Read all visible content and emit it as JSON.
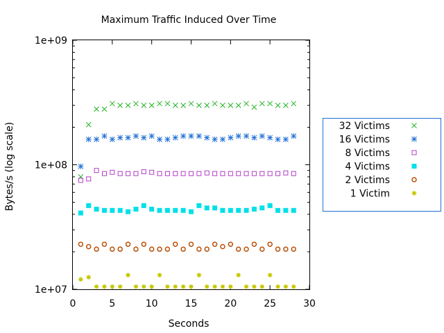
{
  "chart_data": {
    "type": "scatter",
    "title": "Maximum Traffic Induced Over Time",
    "xlabel": "Seconds",
    "ylabel": "Bytes/s (log scale)",
    "xlim": [
      0,
      30
    ],
    "ylim": [
      10000000,
      1000000000
    ],
    "yscale": "log",
    "grid": false,
    "legend_position": "right",
    "x_ticks": [
      {
        "value": 0,
        "label": "0"
      },
      {
        "value": 5,
        "label": "5"
      },
      {
        "value": 10,
        "label": "10"
      },
      {
        "value": 15,
        "label": "15"
      },
      {
        "value": 20,
        "label": "20"
      },
      {
        "value": 25,
        "label": "25"
      },
      {
        "value": 30,
        "label": "30"
      }
    ],
    "y_ticks": [
      {
        "value": 10000000,
        "label": "1e+07"
      },
      {
        "value": 100000000,
        "label": "1e+08"
      },
      {
        "value": 1000000000,
        "label": "1e+09"
      }
    ],
    "x": [
      1,
      2,
      3,
      4,
      5,
      6,
      7,
      8,
      9,
      10,
      11,
      12,
      13,
      14,
      15,
      16,
      17,
      18,
      19,
      20,
      21,
      22,
      23,
      24,
      25,
      26,
      27,
      28
    ],
    "series": [
      {
        "name": "32 Victims",
        "color": "#21b221",
        "marker": "x",
        "values": [
          80000000,
          210000000,
          280000000,
          280000000,
          310000000,
          300000000,
          300000000,
          310000000,
          300000000,
          300000000,
          310000000,
          310000000,
          300000000,
          300000000,
          310000000,
          300000000,
          300000000,
          310000000,
          300000000,
          300000000,
          300000000,
          310000000,
          290000000,
          310000000,
          310000000,
          300000000,
          300000000,
          310000000
        ]
      },
      {
        "name": "16 Victims",
        "color": "#1f6fd6",
        "marker": "star",
        "values": [
          97000000,
          160000000,
          160000000,
          170000000,
          160000000,
          165000000,
          165000000,
          170000000,
          165000000,
          170000000,
          160000000,
          160000000,
          165000000,
          170000000,
          170000000,
          170000000,
          165000000,
          160000000,
          160000000,
          165000000,
          170000000,
          170000000,
          165000000,
          170000000,
          165000000,
          160000000,
          160000000,
          170000000
        ]
      },
      {
        "name": "8 Victims",
        "color": "#b23cc8",
        "marker": "square-open",
        "values": [
          75000000,
          77000000,
          90000000,
          85000000,
          87000000,
          85000000,
          85000000,
          85000000,
          88000000,
          87000000,
          85000000,
          85000000,
          85000000,
          85000000,
          85000000,
          85000000,
          86000000,
          85000000,
          85000000,
          85000000,
          85000000,
          85000000,
          85000000,
          85000000,
          85000000,
          85000000,
          86000000,
          85000000
        ]
      },
      {
        "name": "4 Victims",
        "color": "#00e0e8",
        "marker": "square-filled",
        "values": [
          41000000,
          47000000,
          44000000,
          43000000,
          43000000,
          43000000,
          42000000,
          44000000,
          47000000,
          44000000,
          43000000,
          43000000,
          43000000,
          43000000,
          42000000,
          47000000,
          45000000,
          45000000,
          43000000,
          43000000,
          43000000,
          43000000,
          44000000,
          45000000,
          47000000,
          43000000,
          43000000,
          43000000
        ]
      },
      {
        "name": "2 Victims",
        "color": "#b8500a",
        "marker": "circle-open",
        "values": [
          23000000,
          22000000,
          21000000,
          23000000,
          21000000,
          21000000,
          23000000,
          21000000,
          23000000,
          21000000,
          21000000,
          21000000,
          23000000,
          21000000,
          23000000,
          21000000,
          21000000,
          23000000,
          22000000,
          23000000,
          21000000,
          21000000,
          23000000,
          21000000,
          23000000,
          21000000,
          21000000,
          21000000
        ]
      },
      {
        "name": "1 Victim",
        "color": "#c8c800",
        "marker": "star-filled",
        "values": [
          12000000,
          12500000,
          10500000,
          10500000,
          10500000,
          10500000,
          13000000,
          10500000,
          10500000,
          10500000,
          13000000,
          10500000,
          10500000,
          10500000,
          10500000,
          13000000,
          10500000,
          10500000,
          10500000,
          10500000,
          13000000,
          10500000,
          10500000,
          10500000,
          13000000,
          10500000,
          10500000,
          10500000
        ]
      }
    ]
  }
}
